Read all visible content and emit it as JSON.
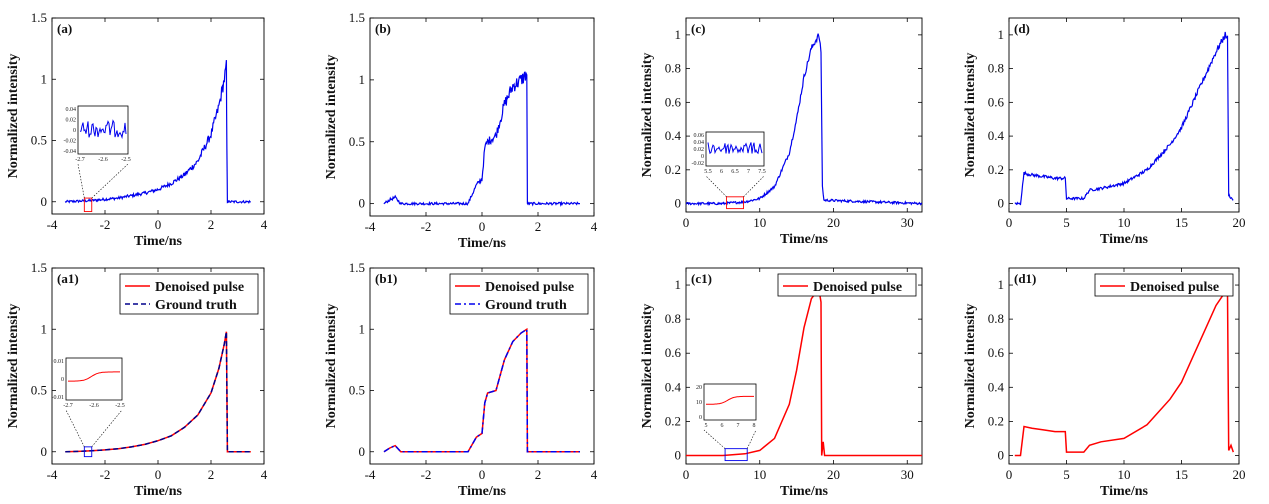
{
  "chart_data": [
    {
      "panel": "(a)",
      "type": "line",
      "xlabel": "Time/ns",
      "ylabel": "Normalized intensity",
      "xlim": [
        -4,
        4
      ],
      "ylim": [
        -0.1,
        1.5
      ],
      "xticks": [
        "-4",
        "-2",
        "0",
        "2",
        "4"
      ],
      "yticks": [
        "0",
        "0.5",
        "1",
        "1.5"
      ],
      "series": [
        {
          "color": "#0000ee",
          "noisy": true,
          "style": "solid",
          "x": [
            -3.5,
            -3.0,
            -2.5,
            -2.0,
            -1.5,
            -1.0,
            -0.5,
            0.0,
            0.5,
            1.0,
            1.5,
            2.0,
            2.3,
            2.5,
            2.58,
            2.6,
            2.62,
            3.0,
            3.5
          ],
          "y": [
            0.0,
            0.005,
            0.01,
            0.02,
            0.03,
            0.05,
            0.07,
            0.1,
            0.15,
            0.22,
            0.33,
            0.55,
            0.78,
            1.0,
            1.1,
            0.4,
            0.0,
            0.0,
            0.0
          ]
        }
      ],
      "inset": {
        "yticks": [
          "0.04",
          "0.02",
          "0",
          "-0.02",
          "-0.04"
        ],
        "xticks": [
          "-2.7",
          "-2.6",
          "-2.5"
        ],
        "color": "#0000ee",
        "noisy": true,
        "shape": "flat"
      }
    },
    {
      "panel": "(b)",
      "type": "line",
      "xlabel": "Time/ns",
      "ylabel": "Normalized intensity",
      "xlim": [
        -4,
        4
      ],
      "ylim": [
        -0.1,
        1.5
      ],
      "xticks": [
        "-4",
        "-2",
        "0",
        "2",
        "4"
      ],
      "yticks": [
        "0",
        "0.5",
        "1",
        "1.5"
      ],
      "series": [
        {
          "color": "#0000ee",
          "noisy": true,
          "style": "solid",
          "x": [
            -3.5,
            -3.3,
            -3.1,
            -2.9,
            -0.5,
            -0.2,
            0.0,
            0.1,
            0.2,
            0.5,
            0.8,
            1.1,
            1.4,
            1.6,
            1.62,
            3.5
          ],
          "y": [
            0.0,
            0.03,
            0.05,
            0.0,
            0.0,
            0.15,
            0.2,
            0.45,
            0.5,
            0.55,
            0.8,
            0.95,
            1.0,
            1.05,
            0.0,
            0.0
          ]
        }
      ]
    },
    {
      "panel": "(c)",
      "type": "line",
      "xlabel": "Time/ns",
      "ylabel": "Normalized intensity",
      "xlim": [
        0,
        32
      ],
      "ylim": [
        -0.05,
        1.1
      ],
      "xticks": [
        "0",
        "10",
        "20",
        "30"
      ],
      "yticks": [
        "0",
        "0.2",
        "0.4",
        "0.6",
        "0.8",
        "1"
      ],
      "series": [
        {
          "color": "#0000ee",
          "noisy": true,
          "style": "solid",
          "x": [
            0,
            5,
            8,
            10,
            12,
            14,
            15,
            16,
            17,
            18,
            18.3,
            18.5,
            18.7,
            32
          ],
          "y": [
            0.0,
            0.0,
            0.01,
            0.03,
            0.1,
            0.3,
            0.5,
            0.75,
            0.92,
            1.0,
            0.9,
            0.1,
            0.02,
            0.0
          ]
        }
      ],
      "inset": {
        "yticks": [
          "0.06",
          "0.04",
          "0.02",
          "0",
          "-0.02"
        ],
        "xticks": [
          "5.5",
          "6",
          "6.5",
          "7",
          "7.5"
        ],
        "color": "#0000ee",
        "noisy": true,
        "shape": "flat"
      }
    },
    {
      "panel": "(d)",
      "type": "line",
      "xlabel": "Time/ns",
      "ylabel": "Normalized intensity",
      "xlim": [
        0,
        20
      ],
      "ylim": [
        -0.05,
        1.1
      ],
      "xticks": [
        "0",
        "5",
        "10",
        "15",
        "20"
      ],
      "yticks": [
        "0",
        "0.2",
        "0.4",
        "0.6",
        "0.8",
        "1"
      ],
      "series": [
        {
          "color": "#0000ee",
          "noisy": true,
          "style": "solid",
          "x": [
            0.5,
            1.0,
            1.3,
            2.0,
            3.0,
            4.0,
            4.9,
            5.0,
            6.5,
            7.0,
            8.0,
            10.0,
            12.0,
            14.0,
            15.0,
            16.0,
            17.0,
            18.0,
            18.8,
            19.0,
            19.1,
            19.5
          ],
          "y": [
            0.0,
            0.0,
            0.18,
            0.17,
            0.16,
            0.15,
            0.15,
            0.03,
            0.03,
            0.08,
            0.09,
            0.12,
            0.2,
            0.35,
            0.45,
            0.6,
            0.75,
            0.9,
            1.0,
            0.98,
            0.05,
            0.02
          ]
        }
      ]
    },
    {
      "panel": "(a1)",
      "type": "line",
      "xlabel": "Time/ns",
      "ylabel": "Normalized intensity",
      "xlim": [
        -4,
        4
      ],
      "ylim": [
        -0.1,
        1.5
      ],
      "xticks": [
        "-4",
        "-2",
        "0",
        "2",
        "4"
      ],
      "yticks": [
        "0",
        "0.5",
        "1",
        "1.5"
      ],
      "series": [
        {
          "name": "Denoised pulse",
          "color": "#ff0000",
          "noisy": false,
          "style": "solid",
          "x": [
            -3.5,
            -3.0,
            -2.5,
            -2.0,
            -1.5,
            -1.0,
            -0.5,
            0.0,
            0.5,
            1.0,
            1.5,
            2.0,
            2.3,
            2.5,
            2.58,
            2.6,
            2.62,
            3.0,
            3.5
          ],
          "y": [
            0.0,
            0.003,
            0.008,
            0.015,
            0.025,
            0.04,
            0.06,
            0.09,
            0.13,
            0.2,
            0.3,
            0.48,
            0.68,
            0.88,
            0.98,
            0.5,
            0.0,
            0.0,
            0.0
          ]
        },
        {
          "name": "Ground truth",
          "color": "#00008b",
          "noisy": false,
          "style": "dashed",
          "x": [
            -3.5,
            -3.0,
            -2.5,
            -2.0,
            -1.5,
            -1.0,
            -0.5,
            0.0,
            0.5,
            1.0,
            1.5,
            2.0,
            2.3,
            2.5,
            2.58,
            2.6,
            2.62,
            3.0,
            3.5
          ],
          "y": [
            0.0,
            0.003,
            0.008,
            0.015,
            0.025,
            0.04,
            0.06,
            0.09,
            0.13,
            0.2,
            0.3,
            0.48,
            0.68,
            0.88,
            0.98,
            0.5,
            0.0,
            0.0,
            0.0
          ]
        }
      ],
      "inset": {
        "yticks": [
          "0.01",
          "0",
          "-0.01"
        ],
        "xticks": [
          "-2.7",
          "-2.6",
          "-2.5"
        ],
        "color": "#ff0000",
        "noisy": false,
        "shape": "step"
      }
    },
    {
      "panel": "(b1)",
      "type": "line",
      "xlabel": "Time/ns",
      "ylabel": "Normalized intensity",
      "xlim": [
        -4,
        4
      ],
      "ylim": [
        -0.1,
        1.5
      ],
      "xticks": [
        "-4",
        "-2",
        "0",
        "2",
        "4"
      ],
      "yticks": [
        "0",
        "0.5",
        "1",
        "1.5"
      ],
      "series": [
        {
          "name": "Denoised pulse",
          "color": "#ff0000",
          "noisy": false,
          "style": "solid",
          "x": [
            -3.5,
            -3.3,
            -3.1,
            -2.9,
            -0.5,
            -0.2,
            0.0,
            0.1,
            0.2,
            0.5,
            0.8,
            1.1,
            1.4,
            1.6,
            1.62,
            3.5
          ],
          "y": [
            0.0,
            0.03,
            0.05,
            0.0,
            0.0,
            0.12,
            0.15,
            0.4,
            0.48,
            0.5,
            0.75,
            0.9,
            0.97,
            1.0,
            0.0,
            0.0
          ]
        },
        {
          "name": "Ground truth",
          "color": "#0000ee",
          "noisy": false,
          "style": "dashdot",
          "x": [
            -3.5,
            -3.3,
            -3.1,
            -2.9,
            -0.5,
            -0.2,
            0.0,
            0.1,
            0.2,
            0.5,
            0.8,
            1.1,
            1.4,
            1.6,
            1.62,
            3.5
          ],
          "y": [
            0.0,
            0.03,
            0.05,
            0.0,
            0.0,
            0.12,
            0.15,
            0.4,
            0.48,
            0.5,
            0.75,
            0.9,
            0.97,
            1.0,
            0.0,
            0.0
          ]
        }
      ]
    },
    {
      "panel": "(c1)",
      "type": "line",
      "xlabel": "Time/ns",
      "ylabel": "Normalized intensity",
      "xlim": [
        0,
        32
      ],
      "ylim": [
        -0.05,
        1.1
      ],
      "xticks": [
        "0",
        "10",
        "20",
        "30"
      ],
      "yticks": [
        "0",
        "0.2",
        "0.4",
        "0.6",
        "0.8",
        "1"
      ],
      "series": [
        {
          "name": "Denoised pulse",
          "color": "#ff0000",
          "noisy": false,
          "style": "solid",
          "x": [
            0,
            5,
            8,
            10,
            12,
            14,
            15,
            16,
            17,
            18,
            18.3,
            18.4,
            18.6,
            18.8,
            19,
            32
          ],
          "y": [
            0.0,
            0.0,
            0.01,
            0.03,
            0.1,
            0.3,
            0.5,
            0.75,
            0.92,
            0.98,
            0.9,
            0.0,
            0.08,
            0.0,
            0.0,
            0.0
          ]
        }
      ],
      "inset": {
        "yticks": [
          "20",
          "10",
          "0"
        ],
        "xticks": [
          "5",
          "6",
          "7",
          "8"
        ],
        "color": "#ff0000",
        "noisy": false,
        "shape": "step"
      }
    },
    {
      "panel": "(d1)",
      "type": "line",
      "xlabel": "Time/ns",
      "ylabel": "Normalized intensity",
      "xlim": [
        0,
        20
      ],
      "ylim": [
        -0.05,
        1.1
      ],
      "xticks": [
        "0",
        "5",
        "10",
        "15",
        "20"
      ],
      "yticks": [
        "0",
        "0.2",
        "0.4",
        "0.6",
        "0.8",
        "1"
      ],
      "series": [
        {
          "name": "Denoised pulse",
          "color": "#ff0000",
          "noisy": false,
          "style": "solid",
          "x": [
            0.5,
            1.0,
            1.3,
            2.0,
            3.0,
            4.0,
            4.9,
            5.0,
            6.5,
            7.0,
            8.0,
            10.0,
            12.0,
            14.0,
            15.0,
            16.0,
            17.0,
            18.0,
            18.8,
            19.0,
            19.1,
            19.3,
            19.5
          ],
          "y": [
            0.0,
            0.0,
            0.17,
            0.16,
            0.15,
            0.14,
            0.14,
            0.02,
            0.02,
            0.06,
            0.08,
            0.1,
            0.18,
            0.33,
            0.43,
            0.58,
            0.73,
            0.88,
            0.96,
            0.96,
            0.03,
            0.06,
            0.02
          ]
        }
      ]
    }
  ]
}
